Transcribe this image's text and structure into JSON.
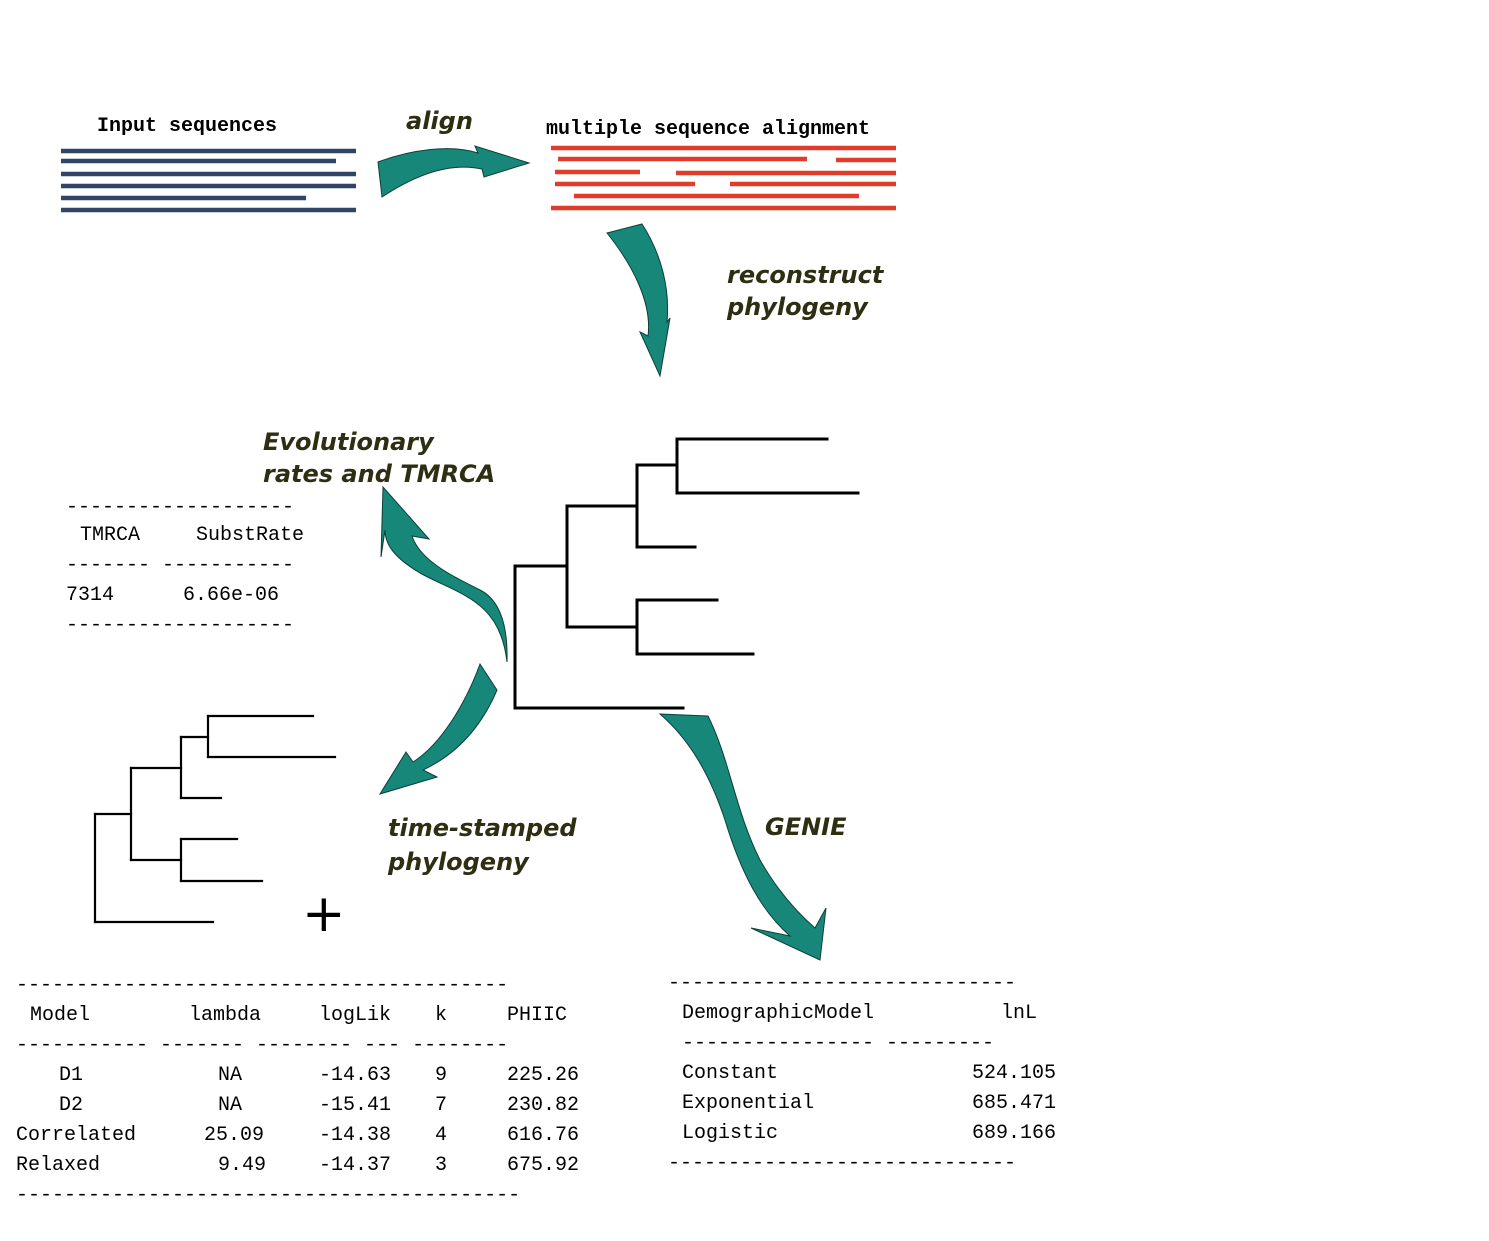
{
  "colors": {
    "input_sequences": "#2f4466",
    "alignment": "#e03c2c",
    "arrow_fill": "#17877a",
    "step_label": "#2e2e12"
  },
  "steps": {
    "input_title": "Input sequences",
    "align": "align",
    "msa_title": "multiple sequence alignment",
    "reconstruct_line1": "reconstruct",
    "reconstruct_line2": "phylogeny",
    "rates_line1": "Evolutionary",
    "rates_line2": "rates and TMRCA",
    "timestamped_line1": "time-stamped",
    "timestamped_line2": "phylogeny",
    "genie": "GENIE",
    "plus": "+"
  },
  "tmrca_table": {
    "rule": "-------------------",
    "subrule": "------- -----------",
    "headers": [
      "TMRCA",
      "SubstRate"
    ],
    "row": [
      "7314",
      "6.66e-06"
    ]
  },
  "model_table": {
    "rule_top": "-----------------------------------------",
    "rule_bottom": "------------------------------------------",
    "subrule": "----------- ------- -------- --- --------",
    "headers": [
      "Model",
      "lambda",
      "logLik",
      "k",
      "PHIIC"
    ],
    "rows": [
      [
        "D1",
        "NA",
        "-14.63",
        "9",
        "225.26"
      ],
      [
        "D2",
        "NA",
        "-15.41",
        "7",
        "230.82"
      ],
      [
        "Correlated",
        "25.09",
        "-14.38",
        "4",
        "616.76"
      ],
      [
        "Relaxed",
        "9.49",
        "-14.37",
        "3",
        "675.92"
      ]
    ]
  },
  "genie_table": {
    "rule": "-----------------------------",
    "subrule": "----------------   ---------",
    "headers": [
      "DemographicModel",
      "lnL"
    ],
    "rows": [
      [
        "Constant",
        "524.105"
      ],
      [
        "Exponential",
        "685.471"
      ],
      [
        "Logistic",
        "689.166"
      ]
    ]
  }
}
